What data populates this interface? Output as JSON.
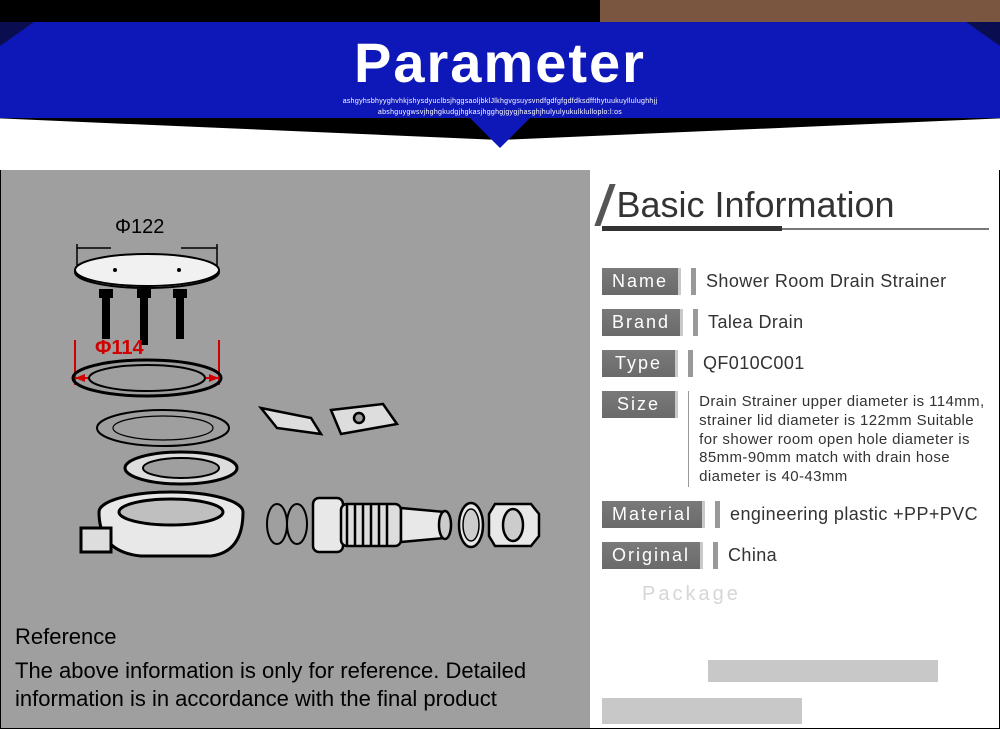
{
  "banner": {
    "title": "Parameter",
    "sub1": "ashgyhsbhyyghvhkjshysdyuclbsjhggsaoljbklJlkhgvgsuysvndfgdfgfgdfdksdffthytuukuyllulughhjj",
    "sub2": "abshguygwsvjhghgkudgjhgkasjhgghgjgygjhasghjhulyulyukulklulloplo:l:os",
    "bg_color": "#0e17b8",
    "text_color": "#ffffff"
  },
  "diagram": {
    "dim_top": "Φ122",
    "dim_inner": "Φ114",
    "dim_inner_color": "#d00000"
  },
  "reference": {
    "title": "Reference",
    "text": "The above information is only for reference. Detailed information is in accordance with the final product"
  },
  "section": {
    "title": "Basic Information"
  },
  "info": {
    "rows": [
      {
        "label": "Name",
        "value": "Shower Room Drain Strainer"
      },
      {
        "label": "Brand",
        "value": "Talea Drain"
      },
      {
        "label": "Type",
        "value": "QF010C001"
      },
      {
        "label": "Size",
        "value": "Drain Strainer upper diameter is 114mm, strainer lid diameter is 122mm Suitable for shower room open hole diameter is 85mm-90mm match with drain hose diameter is 40-43mm",
        "small": true
      },
      {
        "label": "Material",
        "value": "engineering plastic +PP+PVC"
      },
      {
        "label": "Original",
        "value": "China"
      }
    ],
    "ghost": "Package"
  },
  "colors": {
    "left_panel_bg": "#9f9f9f",
    "tag_bg": "#6f6f6f",
    "tag_text": "#ffffff"
  }
}
